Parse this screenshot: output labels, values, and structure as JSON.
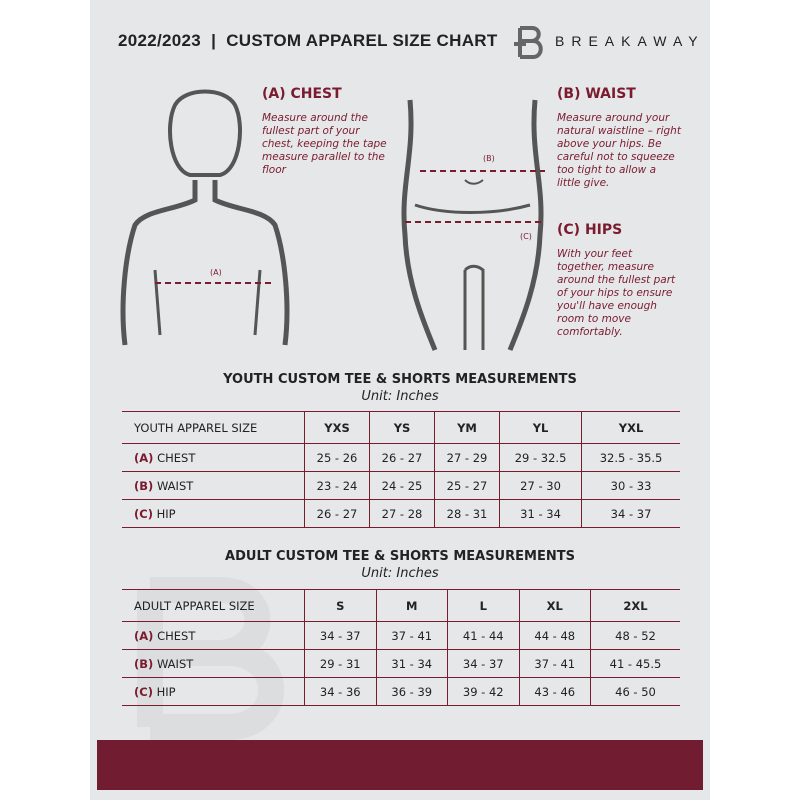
{
  "header": {
    "title": "2022/2023  |  CUSTOM APPAREL SIZE CHART",
    "brand": "BREAKAWAY"
  },
  "measures": {
    "chest": {
      "title": "(A) CHEST",
      "text": "Measure around the fullest part of your chest, keeping the tape measure parallel to the floor",
      "marker": "(A)"
    },
    "waist": {
      "title": "(B) WAIST",
      "text": "Measure around your natural waistline – right above your hips. Be careful not to squeeze too tight to allow a little give.",
      "marker": "(B)"
    },
    "hips": {
      "title": "(C) HIPS",
      "text": "With your feet together, measure around the fullest part of your hips to ensure you'll have enough room to move comfortably.",
      "marker": "(C)"
    }
  },
  "youth": {
    "title": "YOUTH CUSTOM TEE & SHORTS MEASUREMENTS",
    "unit": "Unit: Inches",
    "header": [
      "YOUTH APPAREL SIZE",
      "YXS",
      "YS",
      "YM",
      "YL",
      "YXL"
    ],
    "rows": [
      {
        "letter": "(A)",
        "name": "CHEST",
        "values": [
          "25 - 26",
          "26 - 27",
          "27 - 29",
          "29 - 32.5",
          "32.5 - 35.5"
        ]
      },
      {
        "letter": "(B)",
        "name": "WAIST",
        "values": [
          "23 - 24",
          "24 - 25",
          "25 - 27",
          "27 - 30",
          "30 - 33"
        ]
      },
      {
        "letter": "(C)",
        "name": "HIP",
        "values": [
          "26 - 27",
          "27 - 28",
          "28 - 31",
          "31 - 34",
          "34 - 37"
        ]
      }
    ]
  },
  "adult": {
    "title": "ADULT CUSTOM TEE & SHORTS MEASUREMENTS",
    "unit": "Unit: Inches",
    "header": [
      "ADULT APPAREL SIZE",
      "S",
      "M",
      "L",
      "XL",
      "2XL"
    ],
    "rows": [
      {
        "letter": "(A)",
        "name": "CHEST",
        "values": [
          "34 - 37",
          "37 - 41",
          "41 - 44",
          "44 - 48",
          "48 - 52"
        ]
      },
      {
        "letter": "(B)",
        "name": "WAIST",
        "values": [
          "29 - 31",
          "31 - 34",
          "34 - 37",
          "37 - 41",
          "41 - 45.5"
        ]
      },
      {
        "letter": "(C)",
        "name": "HIP",
        "values": [
          "34 - 36",
          "36 - 39",
          "39 - 42",
          "43 - 46",
          "46 - 50"
        ]
      }
    ]
  },
  "colors": {
    "accent": "#711c31",
    "background": "#e6e7e8"
  }
}
